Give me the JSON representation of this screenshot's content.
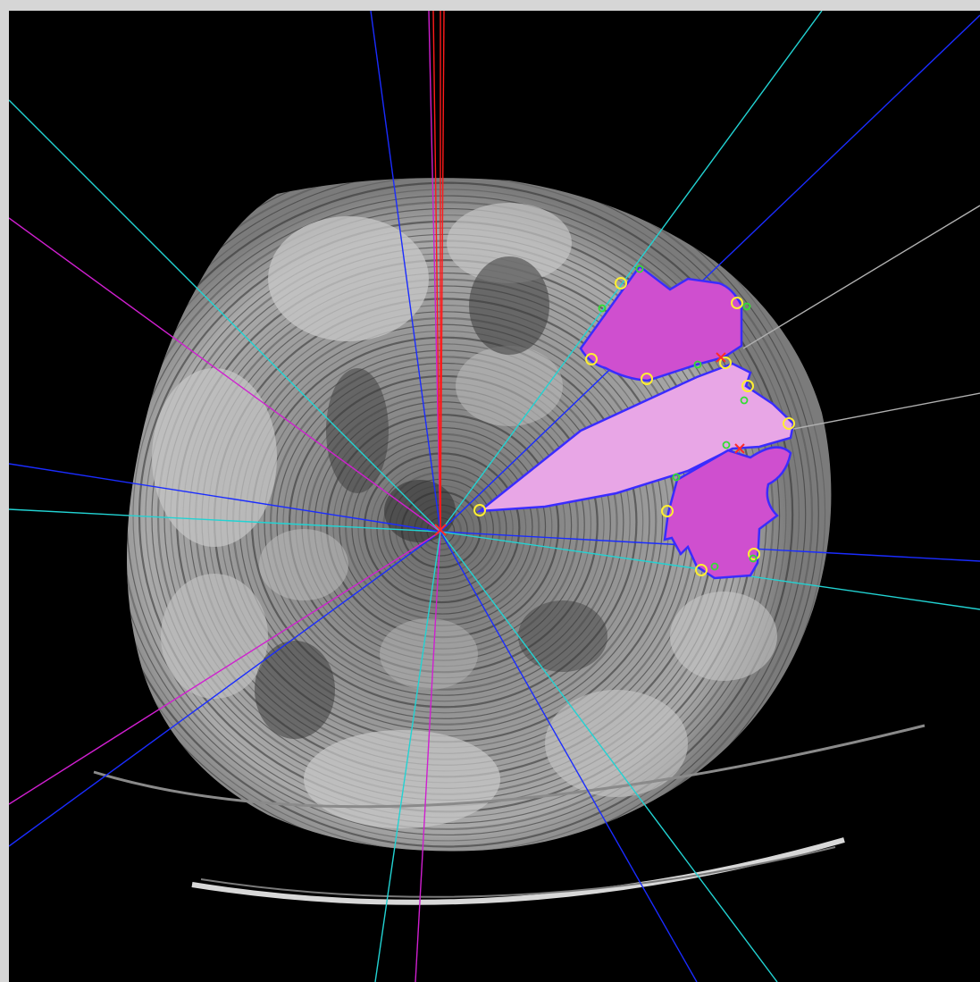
{
  "viewer": {
    "background_color": "#000000",
    "frame_color": "#d6d6d6"
  },
  "scan": {
    "kind": "ct-cross-section",
    "tissue_light": "#c8c8c8",
    "tissue_dark": "#3a3a3a"
  },
  "overlay": {
    "colors": {
      "ray_blue": "#1a2cff",
      "ray_cyan": "#22d3d3",
      "ray_magenta": "#d01fd0",
      "ray_red": "#ff1a1a",
      "ray_gray": "#b0b0b0",
      "segment_fill": "#cf4fcf",
      "segment_fill_light": "#e8a6e6",
      "segment_outline": "#3a2cff",
      "control_point_yellow": "#ffee33",
      "control_point_green": "#33dd33",
      "seed_marker_red": "#ff2a2a"
    },
    "segments": [
      {
        "name": "upper-segment",
        "shade": "segment_fill"
      },
      {
        "name": "wedge-segment",
        "shade": "segment_fill_light"
      },
      {
        "name": "lower-segment",
        "shade": "segment_fill"
      }
    ]
  }
}
